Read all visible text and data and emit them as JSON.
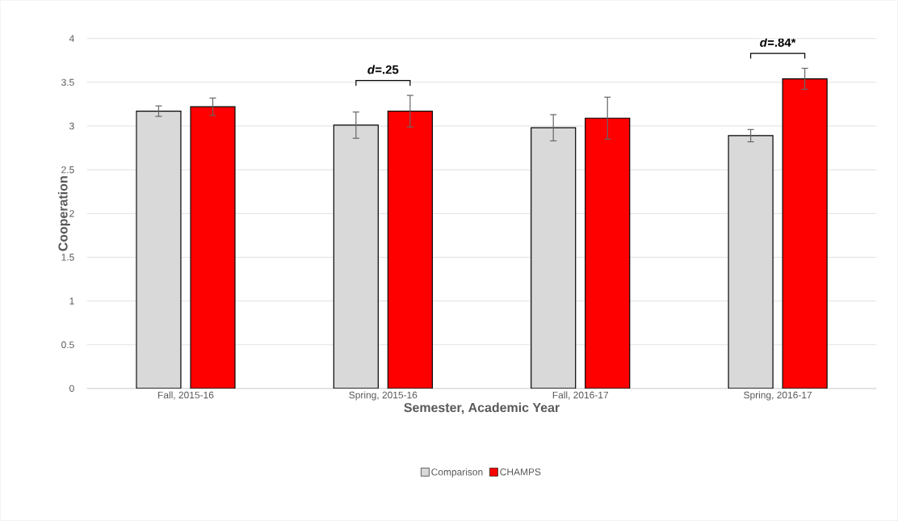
{
  "chart_data": {
    "type": "bar",
    "xlabel": "Semester, Academic Year",
    "ylabel": "Cooperation",
    "categories": [
      "Fall, 2015-16",
      "Spring, 2015-16",
      "Fall, 2016-17",
      "Spring, 2016-17"
    ],
    "series": [
      {
        "name": "Comparison",
        "color": "#d9d9d9",
        "values": [
          3.17,
          3.01,
          2.98,
          2.89
        ],
        "errors": [
          0.06,
          0.15,
          0.15,
          0.07
        ]
      },
      {
        "name": "CHAMPS",
        "color": "#ff0000",
        "values": [
          3.22,
          3.17,
          3.09,
          3.54
        ],
        "errors": [
          0.1,
          0.18,
          0.24,
          0.12
        ]
      }
    ],
    "ylim": [
      0,
      4
    ],
    "yticks": [
      0,
      0.5,
      1,
      1.5,
      2,
      2.5,
      3,
      3.5,
      4
    ],
    "grid": "y",
    "legend": "bottom",
    "annotations": [
      "*d*=.25",
      "*d*=.84*"
    ]
  }
}
